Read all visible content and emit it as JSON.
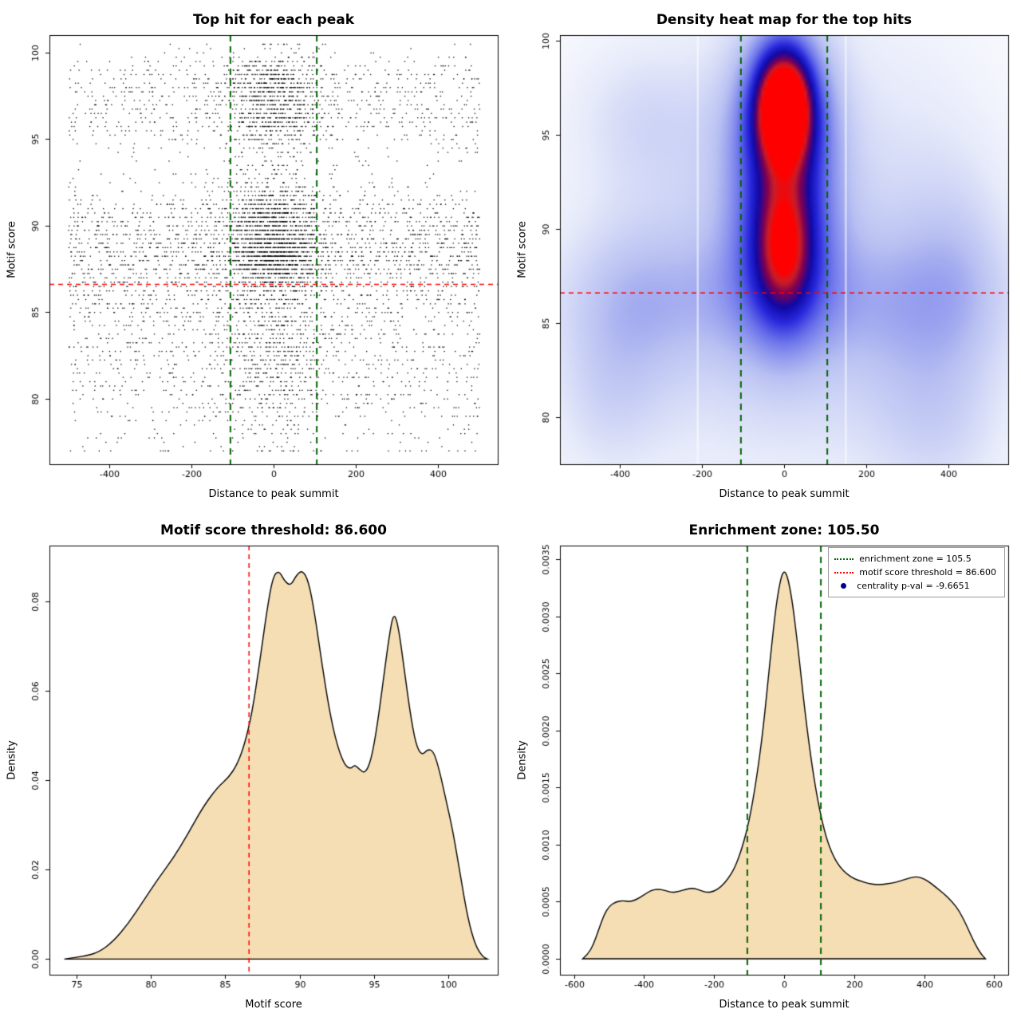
{
  "page": {
    "background": "#ffffff"
  },
  "colors": {
    "enrichment_zone_line": "#006400",
    "threshold_line": "#FF0000",
    "pvalue_dot": "#00008B",
    "density_fill": "#F5DEB3",
    "density_stroke": "#000000",
    "point_color": "#000000"
  },
  "chart_data": [
    {
      "type": "scatter",
      "title": "Top hit for each peak",
      "xlabel": "Distance to peak summit",
      "ylabel": "Motif score",
      "xlim": [
        -545,
        545
      ],
      "ylim": [
        76.2,
        101
      ],
      "xticks": {
        "values": [
          -400,
          -200,
          0,
          200,
          400
        ],
        "labels": [
          "-400",
          "-200",
          "0",
          "200",
          "400"
        ]
      },
      "yticks": {
        "values": [
          80,
          85,
          90,
          95,
          100
        ],
        "labels": [
          "80",
          "85",
          "90",
          "95",
          "100"
        ]
      },
      "point_color": "#000000",
      "points": {
        "n": 7000,
        "seed": 9,
        "quantize": 0.25,
        "xclip": 500,
        "central": {
          "sd": 58,
          "p_above": 0.5,
          "p_below": 0.28,
          "threshold": 86.6
        },
        "mix": [
          {
            "w": 0.28,
            "mean": 88.3,
            "sd": 1.3
          },
          {
            "w": 0.22,
            "mean": 90.2,
            "sd": 1.6
          },
          {
            "w": 0.16,
            "mean": 84.5,
            "sd": 2.2
          },
          {
            "w": 0.14,
            "mean": 96.3,
            "sd": 1.2
          },
          {
            "w": 0.1,
            "mean": 98.4,
            "sd": 1.0
          },
          {
            "w": 0.1,
            "mean": 80.5,
            "sd": 2.0
          }
        ]
      },
      "vlines": [
        {
          "x": -105,
          "color": "#006400",
          "dash": [
            8,
            6
          ],
          "width": 2
        },
        {
          "x": 105,
          "color": "#006400",
          "dash": [
            8,
            6
          ],
          "width": 2
        }
      ],
      "hlines": [
        {
          "y": 86.6,
          "color": "#FF0000",
          "dash": [
            6,
            5
          ],
          "width": 1.5
        }
      ]
    },
    {
      "type": "heatmap",
      "title": "Density heat map for the top hits",
      "xlabel": "Distance to peak summit",
      "ylabel": "Motif score",
      "xlim": [
        -545,
        545
      ],
      "ylim": [
        77.5,
        100.3
      ],
      "xticks": {
        "values": [
          -400,
          -200,
          0,
          200,
          400
        ],
        "labels": [
          "-400",
          "-200",
          "0",
          "200",
          "400"
        ]
      },
      "yticks": {
        "values": [
          80,
          85,
          90,
          95,
          100
        ],
        "labels": [
          "80",
          "85",
          "90",
          "95",
          "100"
        ]
      },
      "scale": 1.22,
      "colormap": [
        [
          0,
          255,
          255,
          255
        ],
        [
          0.12,
          230,
          234,
          250
        ],
        [
          0.28,
          185,
          193,
          242
        ],
        [
          0.45,
          110,
          118,
          235
        ],
        [
          0.6,
          40,
          40,
          220
        ],
        [
          0.72,
          15,
          8,
          165
        ],
        [
          0.85,
          130,
          0,
          80
        ],
        [
          0.93,
          200,
          30,
          40
        ],
        [
          1,
          255,
          0,
          0
        ]
      ],
      "blobs": [
        [
          0,
          96.5,
          45,
          2.0,
          1.0
        ],
        [
          0,
          96.3,
          85,
          3.6,
          0.45
        ],
        [
          0,
          89.0,
          48,
          2.4,
          0.52
        ],
        [
          0,
          89.0,
          90,
          4.2,
          0.3
        ],
        [
          0,
          92.8,
          95,
          5.0,
          0.25
        ],
        [
          0,
          86.3,
          420,
          2.6,
          0.16
        ],
        [
          0,
          90,
          520,
          12,
          0.1
        ],
        [
          0,
          81,
          320,
          4,
          0.09
        ],
        [
          -350,
          96,
          120,
          2.6,
          0.12
        ],
        [
          -390,
          85.5,
          110,
          4,
          0.14
        ],
        [
          350,
          84,
          140,
          5,
          0.13
        ],
        [
          430,
          88.5,
          90,
          4,
          0.11
        ],
        [
          -440,
          80.5,
          95,
          3,
          0.1
        ],
        [
          380,
          79,
          110,
          3,
          0.09
        ],
        [
          -210,
          90.5,
          150,
          6,
          0.1
        ],
        [
          260,
          92,
          150,
          6,
          0.09
        ]
      ],
      "white_stripes": [
        -210,
        150
      ],
      "vlines": [
        {
          "x": -105,
          "color": "#006400",
          "dash": [
            8,
            6
          ],
          "width": 2
        },
        {
          "x": 105,
          "color": "#006400",
          "dash": [
            8,
            6
          ],
          "width": 2
        }
      ],
      "hlines": [
        {
          "y": 86.6,
          "color": "#FF0000",
          "dash": [
            6,
            5
          ],
          "width": 1.5
        }
      ]
    },
    {
      "type": "density",
      "title": "Motif score threshold: 86.600",
      "xlabel": "Motif score",
      "ylabel": "Density",
      "xlim": [
        73.2,
        103.3
      ],
      "ylim": [
        -0.0035,
        0.0925
      ],
      "xticks": {
        "values": [
          75,
          80,
          85,
          90,
          95,
          100
        ],
        "labels": [
          "75",
          "80",
          "85",
          "90",
          "95",
          "100"
        ]
      },
      "yticks": {
        "values": [
          0,
          0.02,
          0.04,
          0.06,
          0.08
        ],
        "labels": [
          "0.00",
          "0.02",
          "0.04",
          "0.06",
          "0.08"
        ]
      },
      "fill": "#F5DEB3",
      "stroke": "#000000",
      "curve": [
        [
          74.2,
          0
        ],
        [
          74.5,
          0.0002
        ],
        [
          75.5,
          0.0006
        ],
        [
          76.5,
          0.0015
        ],
        [
          77.5,
          0.004
        ],
        [
          78.5,
          0.008
        ],
        [
          79.5,
          0.013
        ],
        [
          80.5,
          0.018
        ],
        [
          81.5,
          0.0225
        ],
        [
          82.5,
          0.028
        ],
        [
          83.5,
          0.034
        ],
        [
          84.5,
          0.0385
        ],
        [
          85.2,
          0.0405
        ],
        [
          85.8,
          0.0435
        ],
        [
          86.3,
          0.048
        ],
        [
          86.8,
          0.055
        ],
        [
          87.3,
          0.066
        ],
        [
          87.8,
          0.078
        ],
        [
          88.2,
          0.0855
        ],
        [
          88.6,
          0.087
        ],
        [
          89.0,
          0.0845
        ],
        [
          89.4,
          0.0835
        ],
        [
          89.8,
          0.086
        ],
        [
          90.2,
          0.087
        ],
        [
          90.6,
          0.0845
        ],
        [
          91.0,
          0.0775
        ],
        [
          91.5,
          0.066
        ],
        [
          92.0,
          0.0555
        ],
        [
          92.5,
          0.048
        ],
        [
          93.0,
          0.0435
        ],
        [
          93.4,
          0.0425
        ],
        [
          93.7,
          0.0435
        ],
        [
          94.0,
          0.0425
        ],
        [
          94.4,
          0.0415
        ],
        [
          94.8,
          0.0445
        ],
        [
          95.2,
          0.052
        ],
        [
          95.6,
          0.062
        ],
        [
          96.0,
          0.072
        ],
        [
          96.3,
          0.0775
        ],
        [
          96.6,
          0.075
        ],
        [
          97.0,
          0.0655
        ],
        [
          97.4,
          0.0555
        ],
        [
          97.8,
          0.048
        ],
        [
          98.2,
          0.0455
        ],
        [
          98.6,
          0.047
        ],
        [
          99.0,
          0.0465
        ],
        [
          99.4,
          0.042
        ],
        [
          99.8,
          0.036
        ],
        [
          100.3,
          0.0285
        ],
        [
          100.8,
          0.0185
        ],
        [
          101.3,
          0.009
        ],
        [
          101.8,
          0.003
        ],
        [
          102.3,
          0.0005
        ],
        [
          102.6,
          0
        ]
      ],
      "vlines": [
        {
          "x": 86.6,
          "color": "#FF0000",
          "dash": [
            6,
            5
          ],
          "width": 1.5
        }
      ]
    },
    {
      "type": "density",
      "title": "Enrichment zone: 105.50",
      "xlabel": "Distance to peak summit",
      "ylabel": "Density",
      "xlim": [
        -640,
        640
      ],
      "ylim": [
        -0.00014,
        0.00362
      ],
      "xticks": {
        "values": [
          -600,
          -400,
          -200,
          0,
          200,
          400,
          600
        ],
        "labels": [
          "-600",
          "-400",
          "-200",
          "0",
          "200",
          "400",
          "600"
        ]
      },
      "yticks": {
        "values": [
          0,
          0.0005,
          0.001,
          0.0015,
          0.002,
          0.0025,
          0.003,
          0.0035
        ],
        "labels": [
          "0.0000",
          "0.0005",
          "0.0010",
          "0.0015",
          "0.0020",
          "0.0025",
          "0.0030",
          "0.0035"
        ]
      },
      "fill": "#F5DEB3",
      "stroke": "#000000",
      "curve": [
        [
          -575,
          0
        ],
        [
          -560,
          4e-05
        ],
        [
          -545,
          0.00012
        ],
        [
          -530,
          0.00025
        ],
        [
          -515,
          0.00038
        ],
        [
          -500,
          0.00046
        ],
        [
          -480,
          0.0005
        ],
        [
          -460,
          0.00051
        ],
        [
          -440,
          0.0005
        ],
        [
          -420,
          0.00052
        ],
        [
          -400,
          0.00056
        ],
        [
          -380,
          0.0006
        ],
        [
          -360,
          0.00061
        ],
        [
          -340,
          0.0006
        ],
        [
          -320,
          0.00058
        ],
        [
          -300,
          0.00059
        ],
        [
          -280,
          0.00061
        ],
        [
          -260,
          0.00062
        ],
        [
          -240,
          0.0006
        ],
        [
          -220,
          0.00058
        ],
        [
          -200,
          0.00059
        ],
        [
          -180,
          0.00063
        ],
        [
          -160,
          0.0007
        ],
        [
          -140,
          0.0008
        ],
        [
          -120,
          0.00097
        ],
        [
          -100,
          0.0012
        ],
        [
          -80,
          0.00155
        ],
        [
          -60,
          0.002
        ],
        [
          -40,
          0.00262
        ],
        [
          -20,
          0.00318
        ],
        [
          0,
          0.00345
        ],
        [
          20,
          0.00322
        ],
        [
          40,
          0.00272
        ],
        [
          60,
          0.00215
        ],
        [
          80,
          0.00168
        ],
        [
          100,
          0.00132
        ],
        [
          120,
          0.00106
        ],
        [
          140,
          0.0009
        ],
        [
          160,
          0.0008
        ],
        [
          180,
          0.00074
        ],
        [
          200,
          0.0007
        ],
        [
          220,
          0.00068
        ],
        [
          240,
          0.00066
        ],
        [
          260,
          0.00065
        ],
        [
          280,
          0.00065
        ],
        [
          300,
          0.00066
        ],
        [
          320,
          0.00067
        ],
        [
          340,
          0.00069
        ],
        [
          360,
          0.00071
        ],
        [
          380,
          0.00072
        ],
        [
          400,
          0.0007
        ],
        [
          420,
          0.00066
        ],
        [
          440,
          0.00061
        ],
        [
          460,
          0.00056
        ],
        [
          480,
          0.0005
        ],
        [
          500,
          0.00042
        ],
        [
          520,
          0.0003
        ],
        [
          540,
          0.00016
        ],
        [
          560,
          5e-05
        ],
        [
          575,
          0
        ]
      ],
      "vlines": [
        {
          "x": -105,
          "color": "#006400",
          "dash": [
            8,
            6
          ],
          "width": 2
        },
        {
          "x": 105,
          "color": "#006400",
          "dash": [
            8,
            6
          ],
          "width": 2
        }
      ],
      "legend": [
        {
          "label": "enrichment zone = 105.5",
          "color": "#006400",
          "type": "dotted-line"
        },
        {
          "label": "motif score threshold = 86.600",
          "color": "#FF0000",
          "type": "dotted-line"
        },
        {
          "label": "centrality p-val = -9.6651",
          "color": "#00008B",
          "type": "dot"
        }
      ]
    }
  ]
}
